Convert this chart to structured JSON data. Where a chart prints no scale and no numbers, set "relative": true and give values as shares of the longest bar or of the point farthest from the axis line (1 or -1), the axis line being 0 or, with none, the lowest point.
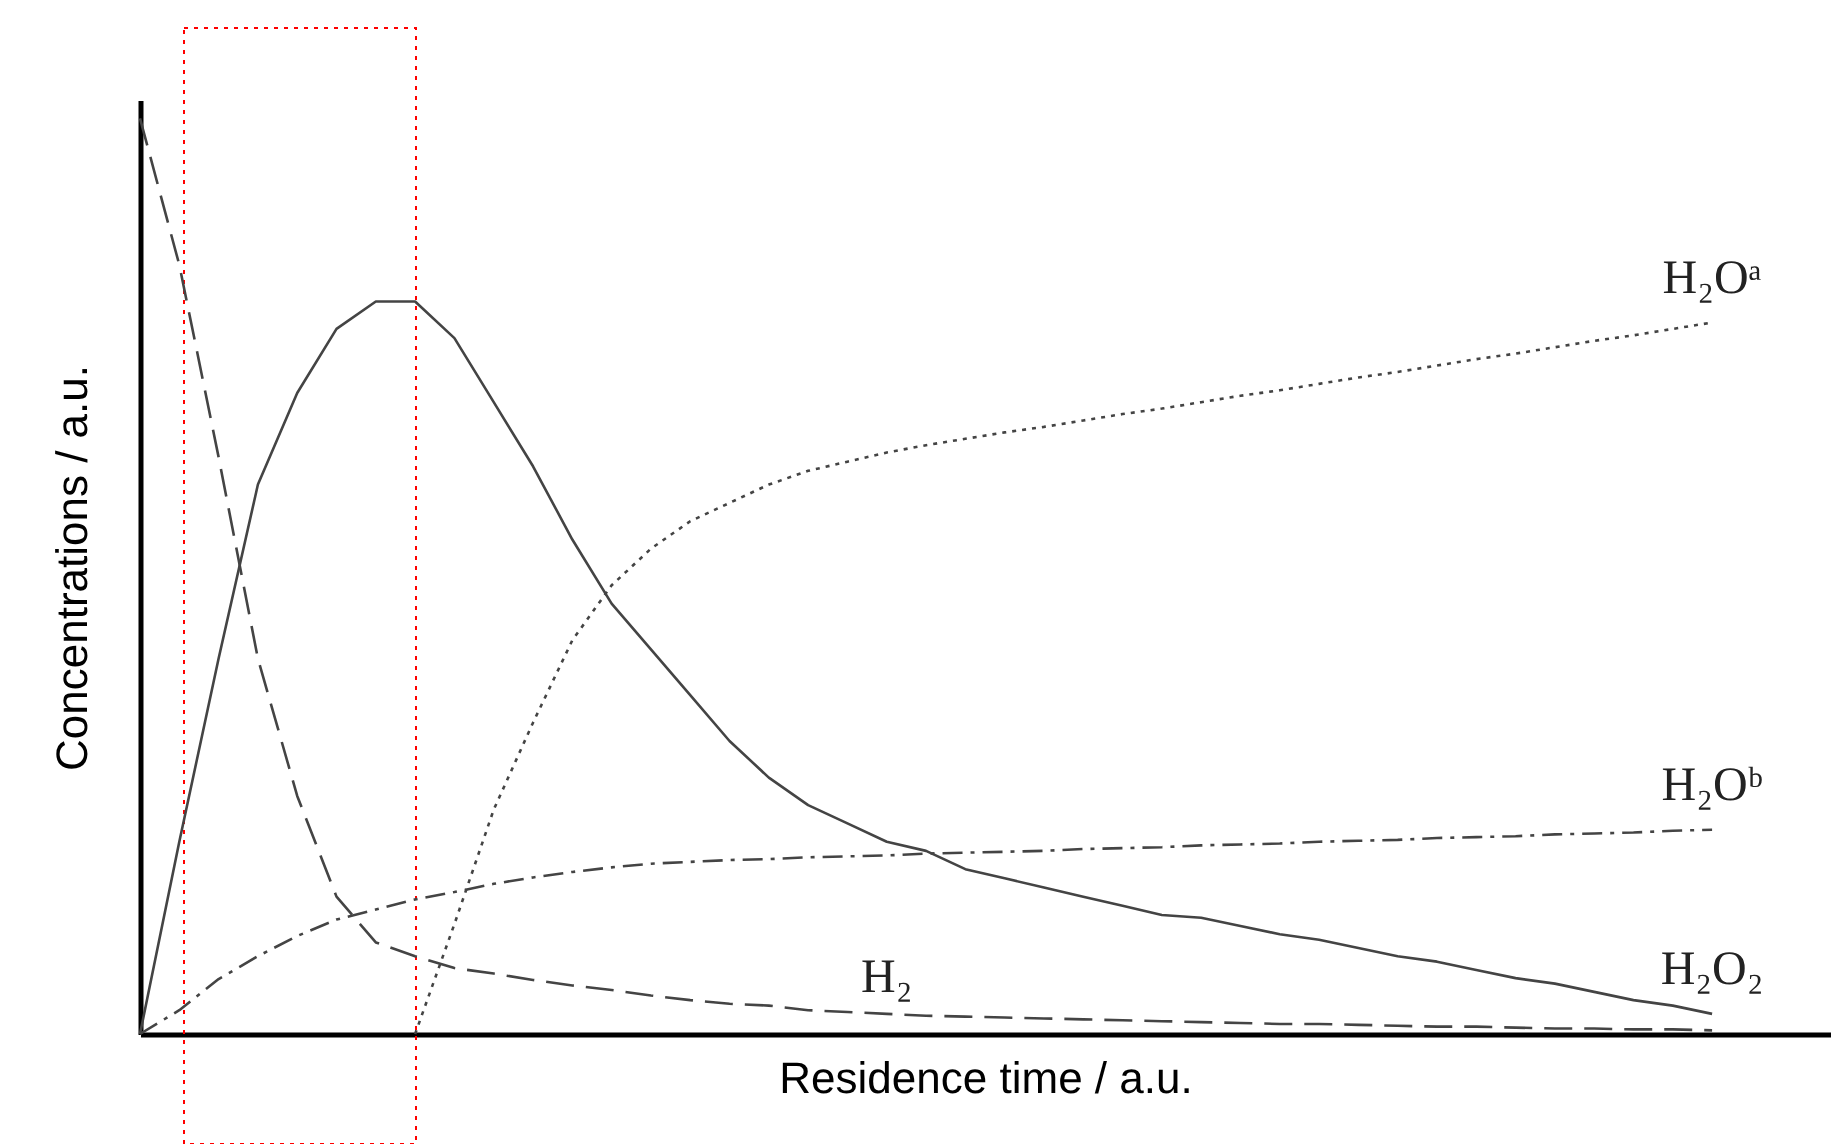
{
  "chart_data": {
    "type": "line",
    "relative": true,
    "xlabel": "Residence time / a.u.",
    "ylabel": "Concentrations / a.u.",
    "categories": [
      null,
      null,
      null,
      null,
      null,
      null,
      null,
      null,
      null,
      null,
      null,
      null,
      null,
      null,
      null,
      null,
      null,
      null,
      null,
      null,
      null,
      null,
      null,
      null,
      null,
      null,
      null,
      null,
      null,
      null,
      null,
      null,
      null,
      null,
      null,
      null,
      null,
      null,
      null,
      null,
      null
    ],
    "series": [
      {
        "name": "H₂Oᵃ",
        "color": "#444444",
        "line_style": "dotted",
        "values": [
          null,
          null,
          null,
          null,
          null,
          null,
          null,
          0,
          0.12,
          0.245,
          0.34,
          0.43,
          0.49,
          0.53,
          0.56,
          0.58,
          0.6,
          0.615,
          0.625,
          0.635,
          0.643,
          0.65,
          0.657,
          0.663,
          0.67,
          0.677,
          0.683,
          0.69,
          0.697,
          0.703,
          0.71,
          0.717,
          0.723,
          0.73,
          0.737,
          0.743,
          0.75,
          0.757,
          0.763,
          0.77,
          0.777
        ]
      },
      {
        "name": "H₂Oᵇ",
        "color": "#444444",
        "line_style": "dashdot",
        "values": [
          0,
          0.026,
          0.06,
          0.085,
          0.107,
          0.125,
          0.136,
          0.147,
          0.155,
          0.164,
          0.171,
          0.177,
          0.182,
          0.186,
          0.188,
          0.19,
          0.191,
          0.193,
          0.194,
          0.195,
          0.197,
          0.198,
          0.199,
          0.2,
          0.202,
          0.203,
          0.204,
          0.206,
          0.207,
          0.208,
          0.21,
          0.211,
          0.212,
          0.214,
          0.215,
          0.216,
          0.218,
          0.219,
          0.22,
          0.222,
          0.223
        ]
      },
      {
        "name": "H₂O₂",
        "color": "#444444",
        "line_style": "solid",
        "values": [
          0,
          0.21,
          0.41,
          0.6,
          0.7,
          0.77,
          0.8,
          0.8,
          0.76,
          0.69,
          0.62,
          0.54,
          0.47,
          0.42,
          0.37,
          0.32,
          0.28,
          0.25,
          0.23,
          0.21,
          0.2,
          0.18,
          0.17,
          0.16,
          0.15,
          0.14,
          0.13,
          0.127,
          0.118,
          0.109,
          0.103,
          0.094,
          0.085,
          0.079,
          0.07,
          0.061,
          0.055,
          0.046,
          0.037,
          0.031,
          0.022
        ]
      },
      {
        "name": "H₂",
        "color": "#444444",
        "line_style": "dashed",
        "values": [
          1,
          0.84,
          0.63,
          0.41,
          0.26,
          0.15,
          0.1,
          0.085,
          0.072,
          0.066,
          0.059,
          0.053,
          0.048,
          0.042,
          0.037,
          0.033,
          0.031,
          0.026,
          0.024,
          0.022,
          0.02,
          0.019,
          0.018,
          0.017,
          0.016,
          0.015,
          0.014,
          0.013,
          0.012,
          0.011,
          0.011,
          0.01,
          0.009,
          0.008,
          0.008,
          0.007,
          0.006,
          0.006,
          0.005,
          0.005,
          0.004
        ]
      }
    ]
  }
}
